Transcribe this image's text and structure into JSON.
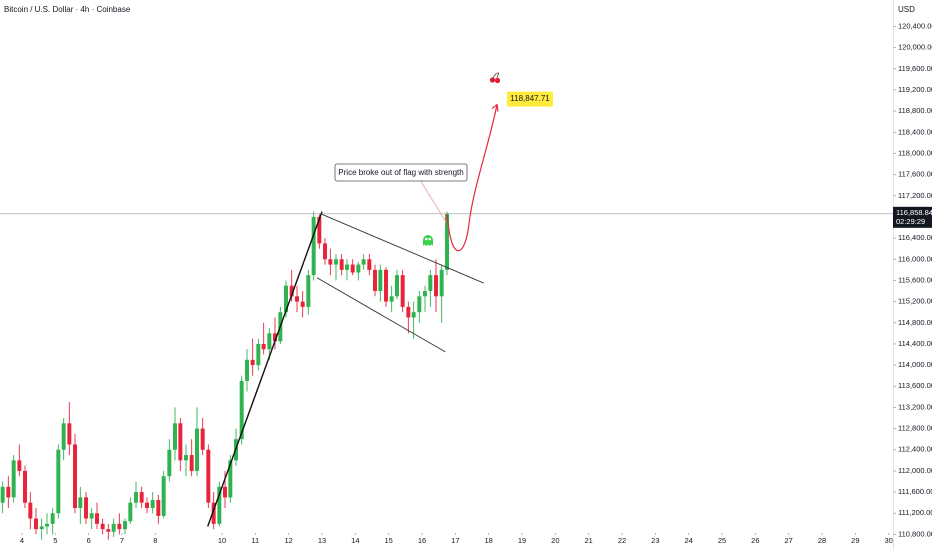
{
  "chart_data": {
    "type": "candlestick",
    "title": "Bitcoin / U.S. Dollar · 4h · Coinbase",
    "currency": "USD",
    "up_color": "#2fb250",
    "down_color": "#e8243c",
    "grid": false,
    "x": [
      3.42,
      3.59,
      3.75,
      3.92,
      4.09,
      4.25,
      4.42,
      4.59,
      4.75,
      4.92,
      5.09,
      5.25,
      5.42,
      5.59,
      5.75,
      5.92,
      6.09,
      6.25,
      6.42,
      6.59,
      6.75,
      6.92,
      7.09,
      7.25,
      7.42,
      7.59,
      7.75,
      7.92,
      8.09,
      8.25,
      8.42,
      8.59,
      8.75,
      8.92,
      9.09,
      9.25,
      9.42,
      9.59,
      9.75,
      9.92,
      10.09,
      10.25,
      10.42,
      10.59,
      10.75,
      10.92,
      11.09,
      11.25,
      11.42,
      11.59,
      11.75,
      11.92,
      12.09,
      12.25,
      12.42,
      12.59,
      12.75,
      12.92,
      13.09,
      13.25,
      13.42,
      13.59,
      13.75,
      13.92,
      14.09,
      14.25,
      14.42,
      14.59,
      14.75,
      14.92,
      15.09,
      15.25,
      15.42,
      15.59,
      15.75,
      15.92,
      16.09,
      16.25,
      16.42,
      16.59,
      16.75
    ],
    "open": [
      111400,
      111700,
      111500,
      112200,
      112000,
      111400,
      111100,
      110900,
      110950,
      111000,
      111200,
      112400,
      112900,
      112500,
      111300,
      111500,
      111100,
      111200,
      111000,
      110900,
      110850,
      111000,
      110900,
      111050,
      111400,
      111600,
      111400,
      111300,
      111450,
      111150,
      111900,
      112400,
      112900,
      112200,
      112300,
      112000,
      112800,
      112400,
      111400,
      111000,
      111700,
      111500,
      112200,
      112600,
      113700,
      114100,
      114000,
      114400,
      114300,
      114600,
      114450,
      115000,
      115500,
      115300,
      115200,
      115100,
      115700,
      116800,
      116300,
      116000,
      115900,
      116000,
      115800,
      115900,
      115750,
      115900,
      116000,
      115800,
      115400,
      115800,
      115200,
      115300,
      115700,
      115100,
      114900,
      115000,
      115300,
      115400,
      115700,
      115300,
      115800
    ],
    "high": [
      111800,
      111900,
      112300,
      112500,
      112100,
      111600,
      111300,
      111100,
      111200,
      111300,
      112500,
      113000,
      113300,
      112700,
      111700,
      111600,
      111300,
      111400,
      111100,
      111000,
      111100,
      111200,
      111100,
      111500,
      111800,
      111700,
      111500,
      111600,
      111550,
      112000,
      112600,
      113200,
      113000,
      112500,
      112600,
      113200,
      113000,
      112500,
      111600,
      111800,
      112000,
      112300,
      112800,
      113800,
      114300,
      114500,
      114500,
      114800,
      114700,
      114900,
      115100,
      115600,
      115800,
      115500,
      115400,
      115800,
      116900,
      116850,
      116400,
      116200,
      116100,
      116100,
      116000,
      116000,
      115950,
      116100,
      116100,
      115900,
      115900,
      115850,
      115500,
      115800,
      115800,
      115200,
      115200,
      115400,
      115500,
      115800,
      116000,
      115900,
      116900
    ],
    "low": [
      111200,
      111300,
      111400,
      111900,
      111300,
      110900,
      110800,
      110700,
      110800,
      110800,
      111100,
      112200,
      112300,
      111200,
      111000,
      111000,
      110900,
      110900,
      110800,
      110700,
      110750,
      110800,
      110800,
      111000,
      111300,
      111300,
      111200,
      111200,
      111000,
      111100,
      111800,
      112200,
      112000,
      111900,
      111900,
      111900,
      112300,
      111300,
      110900,
      110950,
      111300,
      111400,
      112100,
      112500,
      113500,
      113800,
      113900,
      114200,
      114100,
      114300,
      114400,
      114900,
      115200,
      115000,
      114900,
      114950,
      115600,
      116200,
      115900,
      115700,
      115600,
      115700,
      115600,
      115700,
      115600,
      115800,
      115700,
      115300,
      115200,
      115100,
      115000,
      115250,
      115000,
      114600,
      114500,
      114800,
      115000,
      115100,
      115000,
      114800,
      115700
    ],
    "close": [
      111700,
      111500,
      112200,
      112000,
      111400,
      111100,
      110900,
      110950,
      111000,
      111200,
      112400,
      112900,
      112500,
      111300,
      111500,
      111100,
      111200,
      111000,
      110900,
      110850,
      111000,
      110900,
      111050,
      111400,
      111600,
      111400,
      111300,
      111450,
      111150,
      111900,
      112400,
      112900,
      112200,
      112300,
      112000,
      112800,
      112400,
      111400,
      111000,
      111700,
      111500,
      112200,
      112600,
      113700,
      114100,
      114000,
      114400,
      114300,
      114600,
      114450,
      115000,
      115500,
      115300,
      115200,
      115100,
      115700,
      116800,
      116300,
      116000,
      115900,
      116000,
      115800,
      115900,
      115750,
      115900,
      116000,
      115800,
      115400,
      115800,
      115200,
      115300,
      115700,
      115100,
      114900,
      115000,
      115300,
      115400,
      115700,
      115300,
      115800,
      116858.84
    ],
    "xlim": [
      3.34,
      30.13
    ],
    "ylim": [
      110600,
      120900
    ],
    "xticks": [
      4,
      5,
      6,
      7,
      8,
      10,
      11,
      12,
      13,
      14,
      15,
      16,
      17,
      18,
      19,
      20,
      21,
      22,
      23,
      24,
      25,
      26,
      27,
      28,
      29,
      30
    ],
    "yticks": [
      {
        "value": 110800,
        "label": "110,800.00"
      },
      {
        "value": 111200,
        "label": "111,200.00"
      },
      {
        "value": 111600,
        "label": "111,600.00"
      },
      {
        "value": 112000,
        "label": "112,000.00"
      },
      {
        "value": 112400,
        "label": "112,400.00"
      },
      {
        "value": 112800,
        "label": "112,800.00"
      },
      {
        "value": 113200,
        "label": "113,200.00"
      },
      {
        "value": 113600,
        "label": "113,600.00"
      },
      {
        "value": 114000,
        "label": "114,000.00"
      },
      {
        "value": 114400,
        "label": "114,400.00"
      },
      {
        "value": 114800,
        "label": "114,800.00"
      },
      {
        "value": 115200,
        "label": "115,200.00"
      },
      {
        "value": 115600,
        "label": "115,600.00"
      },
      {
        "value": 116000,
        "label": "116,000.00"
      },
      {
        "value": 116400,
        "label": "116,400.00"
      },
      {
        "value": 117200,
        "label": "117,200.00"
      },
      {
        "value": 117600,
        "label": "117,600.00"
      },
      {
        "value": 118000,
        "label": "118,000.00"
      },
      {
        "value": 118400,
        "label": "118,400.00"
      },
      {
        "value": 118800,
        "label": "118,800.00"
      },
      {
        "value": 119200,
        "label": "119,200.00"
      },
      {
        "value": 119600,
        "label": "119,600.00"
      },
      {
        "value": 120000,
        "label": "120,000.00"
      },
      {
        "value": 120400,
        "label": "120,400.00"
      }
    ],
    "current_price": {
      "value": 116858.84,
      "label": "116,858.84"
    },
    "countdown": "02:29:29",
    "target": {
      "value": 118847.71,
      "label": "118,847.71"
    },
    "annotation": "Price broke out of flag with strength",
    "trendlines": [
      {
        "color": "#111111",
        "x": [
          9.57,
          13.0
        ],
        "y": [
          110950,
          116900
        ]
      },
      {
        "color": "#333333",
        "x": [
          13.0,
          17.85
        ],
        "y": [
          116850,
          115550
        ]
      },
      {
        "color": "#333333",
        "x": [
          12.85,
          16.7
        ],
        "y": [
          115650,
          114250
        ]
      }
    ]
  }
}
